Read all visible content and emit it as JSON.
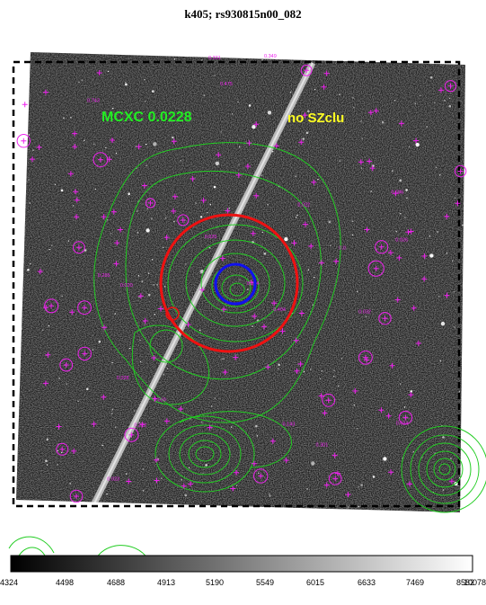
{
  "title": "k405; rs930815n00_082",
  "labels": {
    "cluster_name": "MCXC 0.0228",
    "sz_status": "no SZclu"
  },
  "colors": {
    "cluster_label": "#22ee22",
    "sz_label": "#ffff22",
    "galaxy_markers": "#ee22ee",
    "contours": "#22cc22",
    "big_circle": "#ee1111",
    "small_circle": "#1111ee",
    "frame_border": "#000000",
    "satellite_trail": "#c8c8c8"
  },
  "galaxy_redshifts": [
    "0.331",
    "0.349",
    "0.020",
    "0.022",
    "0.023",
    "0.024",
    "0.025",
    "0.026",
    "0.028",
    "0.030",
    "0.032",
    "0.034",
    "0.143",
    "0.222",
    "0.265",
    "0.301",
    "0.404",
    "0.475",
    "0.586",
    "0.743",
    "0.0"
  ],
  "colorbar": {
    "ticks": [
      "4324",
      "4498",
      "4688",
      "4913",
      "5190",
      "5549",
      "6015",
      "6633",
      "7469",
      "8582",
      "10078"
    ]
  }
}
